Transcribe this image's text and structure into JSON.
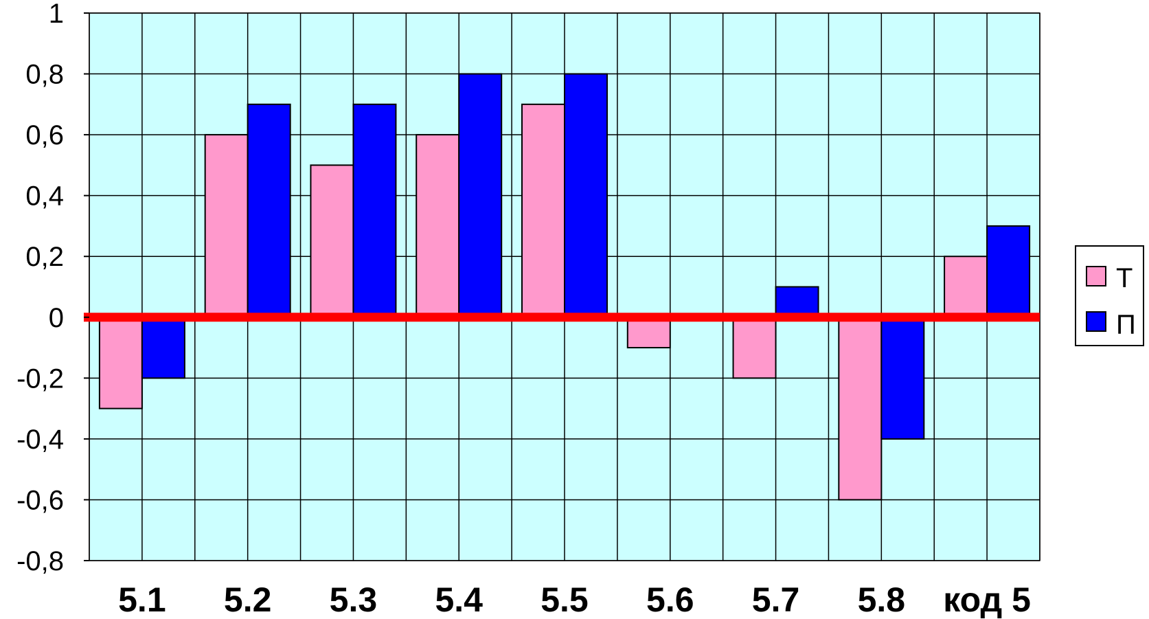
{
  "chart_data": {
    "type": "bar",
    "categories": [
      "5.1",
      "5.2",
      "5.3",
      "5.4",
      "5.5",
      "5.6",
      "5.7",
      "5.8",
      "код 5"
    ],
    "series": [
      {
        "name": "Т",
        "values": [
          -0.3,
          0.6,
          0.5,
          0.6,
          0.7,
          -0.1,
          -0.2,
          -0.6,
          0.2
        ],
        "color": "#ff99cc"
      },
      {
        "name": "П",
        "values": [
          -0.2,
          0.7,
          0.7,
          0.8,
          0.8,
          0,
          0.1,
          -0.4,
          0.3
        ],
        "color": "#0000ff"
      }
    ],
    "ylim": [
      -0.8,
      1
    ],
    "yticks": [
      "1",
      "0,8",
      "0,6",
      "0,4",
      "0,2",
      "0",
      "-0,2",
      "-0,4",
      "-0,6",
      "-0,8"
    ],
    "ytick_values": [
      1,
      0.8,
      0.6,
      0.4,
      0.2,
      0,
      -0.2,
      -0.4,
      -0.6,
      -0.8
    ],
    "grid": true,
    "legend": "right",
    "plot_background": "#ccffff",
    "zero_line_color": "#ff0000"
  }
}
